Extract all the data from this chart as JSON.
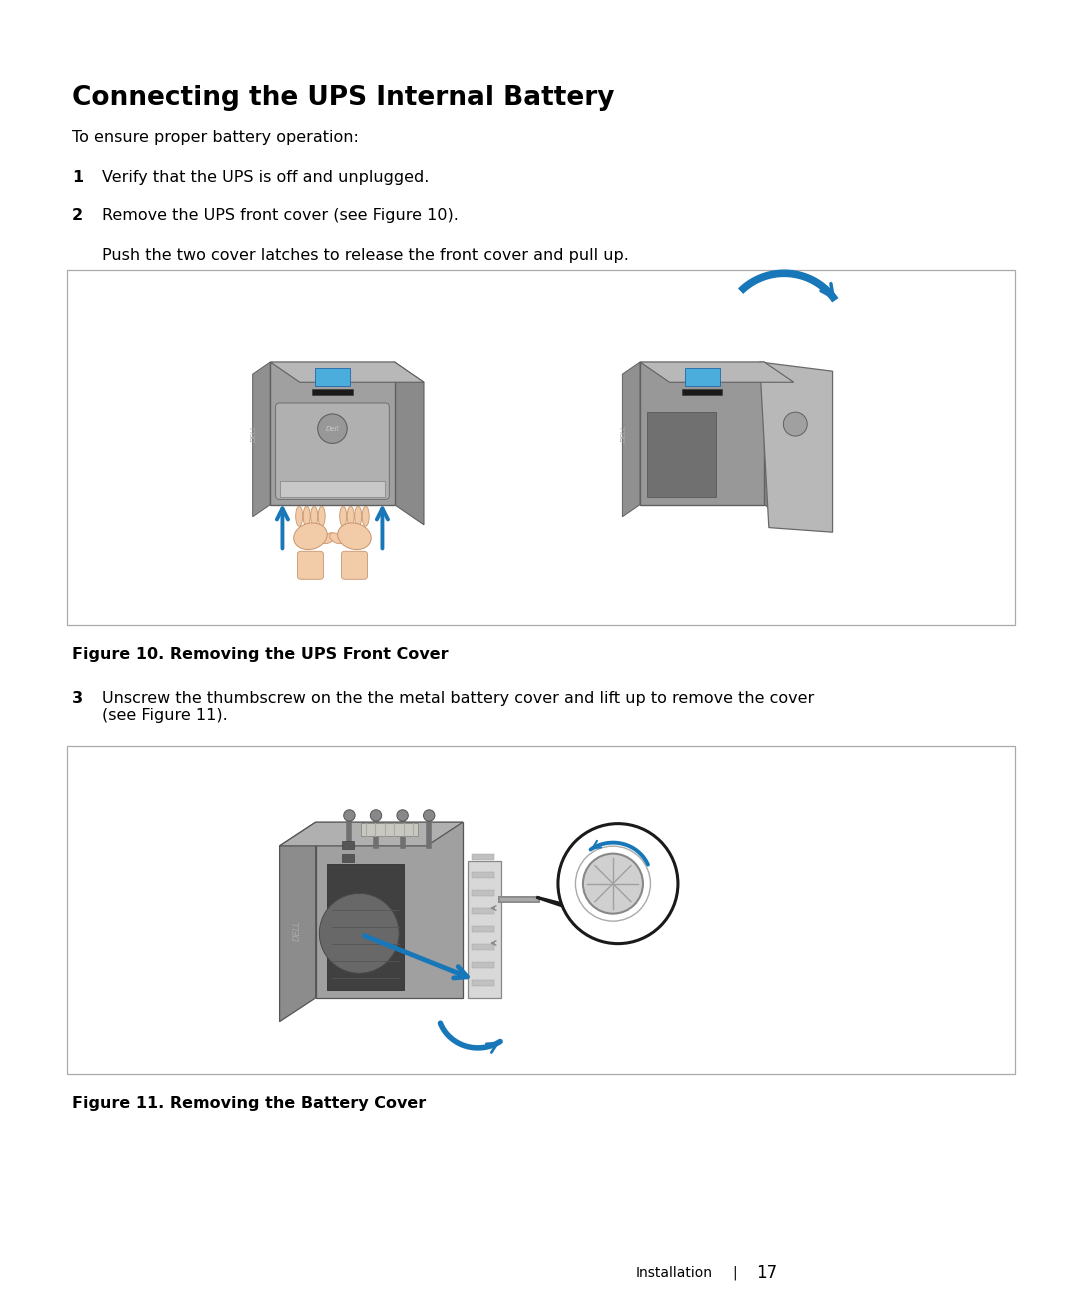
{
  "bg_color": "#ffffff",
  "page_width": 10.8,
  "page_height": 12.95,
  "dpi": 100,
  "title": "Connecting the UPS Internal Battery",
  "title_fontsize": 19,
  "intro_text": "To ensure proper battery operation:",
  "body_fontsize": 11.5,
  "step1_num": "1",
  "step1_text": "Verify that the UPS is off and unplugged.",
  "step2_num": "2",
  "step2_text": "Remove the UPS front cover (see Figure 10).",
  "step2_subtext": "Push the two cover latches to release the front cover and pull up.",
  "step3_num": "3",
  "step3_text": "Unscrew the thumbscrew on the the metal battery cover and lift up to remove the cover\n(see Figure 11).",
  "fig10_caption": "Figure 10. Removing the UPS Front Cover",
  "fig11_caption": "Figure 11. Removing the Battery Cover",
  "footer_text": "Installation",
  "footer_sep": "    |    ",
  "footer_page": "17",
  "arrow_color": "#1877b8",
  "box_edge_color": "#aaaaaa",
  "ups_body_color": "#a0a0a0",
  "ups_top_color": "#b8b8b8",
  "ups_side_color": "#8a8a8a",
  "ups_panel_color": "#bdbdbd",
  "ups_display_color": "#4aaddb",
  "hand_fill": "#f2cba8",
  "hand_edge": "#c8956c",
  "dark_color": "#333333",
  "ml": 0.72,
  "mr": 0.65
}
